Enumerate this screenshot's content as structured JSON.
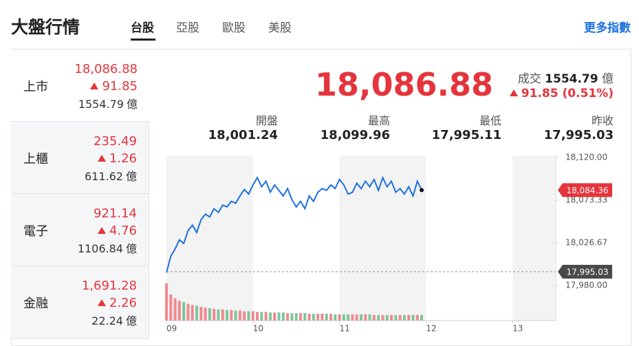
{
  "header": {
    "title": "大盤行情",
    "tabs": [
      "台股",
      "亞股",
      "歐股",
      "美股"
    ],
    "more": "更多指數"
  },
  "indices": [
    {
      "name": "上市",
      "price": "18,086.88",
      "change": "91.85",
      "volume": "1554.79",
      "unit": "億"
    },
    {
      "name": "上櫃",
      "price": "235.49",
      "change": "1.26",
      "volume": "611.62",
      "unit": "億"
    },
    {
      "name": "電子",
      "price": "921.14",
      "change": "4.76",
      "volume": "1106.84",
      "unit": "億"
    },
    {
      "name": "金融",
      "price": "1,691.28",
      "change": "2.26",
      "volume": "22.24",
      "unit": "億"
    }
  ],
  "summary": {
    "price": "18,086.88",
    "volume_label": "成交",
    "volume": "1554.79",
    "unit": "億",
    "change": "91.85 (0.51%)",
    "stats": [
      {
        "label": "開盤",
        "value": "18,001.24"
      },
      {
        "label": "最高",
        "value": "18,099.96"
      },
      {
        "label": "最低",
        "value": "17,995.11"
      },
      {
        "label": "昨收",
        "value": "17,995.03"
      }
    ]
  },
  "chart_data": {
    "type": "line",
    "color": "#1a6fe0",
    "x": [
      9.0,
      9.05,
      9.1,
      9.15,
      9.2,
      9.25,
      9.3,
      9.35,
      9.4,
      9.45,
      9.5,
      9.55,
      9.6,
      9.65,
      9.7,
      9.75,
      9.8,
      9.85,
      9.9,
      9.95,
      10.0,
      10.05,
      10.1,
      10.15,
      10.2,
      10.25,
      10.3,
      10.35,
      10.4,
      10.45,
      10.5,
      10.55,
      10.6,
      10.65,
      10.7,
      10.75,
      10.8,
      10.85,
      10.9,
      10.95,
      11.0,
      11.05,
      11.1,
      11.15,
      11.2,
      11.25,
      11.3,
      11.35,
      11.4,
      11.45,
      11.5,
      11.55,
      11.6,
      11.65,
      11.7,
      11.75,
      11.8,
      11.85,
      11.9,
      11.95
    ],
    "values": [
      17994,
      18012,
      18020,
      18030,
      18026,
      18040,
      18046,
      18038,
      18052,
      18058,
      18055,
      18064,
      18060,
      18068,
      18066,
      18072,
      18070,
      18078,
      18085,
      18080,
      18090,
      18098,
      18088,
      18094,
      18082,
      18090,
      18084,
      18078,
      18086,
      18074,
      18066,
      18072,
      18064,
      18078,
      18072,
      18082,
      18086,
      18084,
      18090,
      18086,
      18096,
      18090,
      18080,
      18082,
      18092,
      18086,
      18094,
      18088,
      18096,
      18084,
      18098,
      18088,
      18094,
      18082,
      18086,
      18080,
      18088,
      18078,
      18094,
      18084.36
    ],
    "volume": [
      60,
      42,
      36,
      32,
      30,
      27,
      25,
      24,
      22,
      21,
      20,
      19,
      18,
      18,
      17,
      17,
      16,
      16,
      15,
      15,
      15,
      14,
      14,
      14,
      13,
      13,
      13,
      13,
      12,
      12,
      12,
      12,
      12,
      11,
      11,
      11,
      11,
      11,
      11,
      10,
      10,
      10,
      10,
      10,
      10,
      10,
      10,
      10,
      9,
      9,
      9,
      9,
      9,
      9,
      9,
      9,
      9,
      9,
      9,
      9
    ],
    "volume_lim": [
      0,
      100
    ],
    "xlim": [
      9,
      13.5
    ],
    "xticks": [
      {
        "value": 9,
        "label": "09"
      },
      {
        "value": 10,
        "label": "10"
      },
      {
        "value": 11,
        "label": "11"
      },
      {
        "value": 12,
        "label": "12"
      },
      {
        "value": 13,
        "label": "13"
      }
    ],
    "ylim": [
      17980,
      18120
    ],
    "yticks": [
      {
        "value": 17980,
        "label": "17,980.00"
      },
      {
        "value": 18026.67,
        "label": "18,026.67"
      },
      {
        "value": 18073.33,
        "label": "18,073.33"
      },
      {
        "value": 18120,
        "label": "18,120.00"
      }
    ],
    "markers": [
      {
        "value": 18084.36,
        "label": "18,084.36",
        "color": "#e5343c"
      },
      {
        "value": 17995.03,
        "label": "17,995.03",
        "color": "#4a4a4a"
      }
    ]
  }
}
